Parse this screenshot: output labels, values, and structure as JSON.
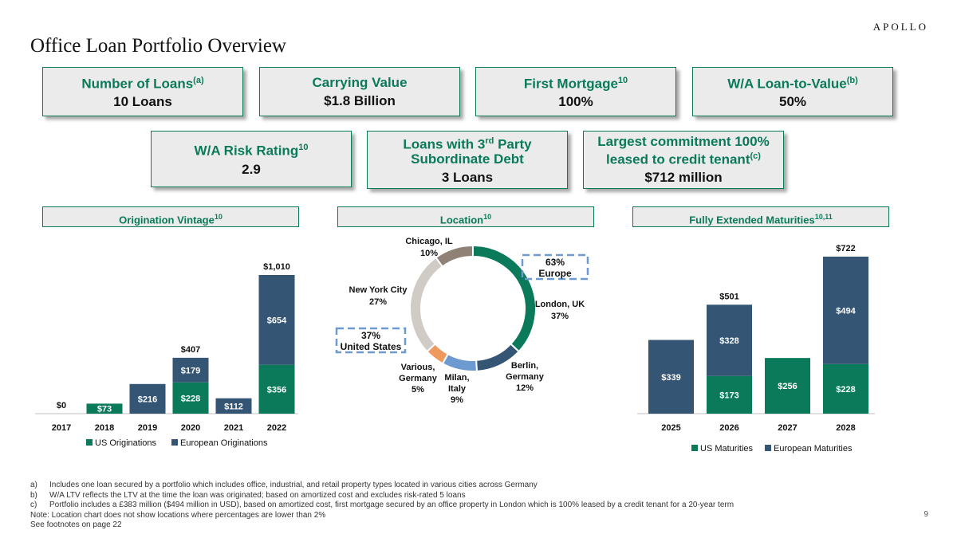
{
  "brand": "APOLLO",
  "title": "Office Loan Portfolio Overview",
  "page_number": "9",
  "colors": {
    "green": "#0a7a5a",
    "navy": "#345574",
    "panel": "#ebebeb"
  },
  "kpis": {
    "num_loans": {
      "label": "Number of Loans",
      "sup": "(a)",
      "value": "10 Loans"
    },
    "carrying_value": {
      "label": "Carrying Value",
      "value": "$1.8 Billion"
    },
    "first_mortgage": {
      "label": "First Mortgage",
      "sup": "10",
      "value": "100%"
    },
    "ltv": {
      "label": "W/A Loan-to-Value",
      "sup": "(b)",
      "value": "50%"
    },
    "risk_rating": {
      "label": "W/A Risk Rating",
      "sup": "10",
      "value": "2.9"
    },
    "sub_debt": {
      "label_a": "Loans with 3",
      "label_sup": "rd",
      "label_b": " Party",
      "label_c": "Subordinate Debt",
      "value": "3 Loans"
    },
    "largest": {
      "label_a": "Largest commitment 100%",
      "label_b": "leased to credit tenant",
      "sup": "(c)",
      "value": "$712 million"
    }
  },
  "sections": {
    "vintage": {
      "label": "Origination Vintage",
      "sup": "10"
    },
    "location": {
      "label": "Location",
      "sup": "10"
    },
    "maturities": {
      "label": "Fully Extended Maturities",
      "sup": "10,11"
    }
  },
  "chart_data": [
    {
      "type": "bar",
      "stacked": true,
      "title": "Origination Vintage",
      "categories": [
        "2017",
        "2018",
        "2019",
        "2020",
        "2021",
        "2022"
      ],
      "series": [
        {
          "name": "US Originations",
          "color": "#0a7a5a",
          "values": [
            0,
            73,
            0,
            228,
            0,
            356
          ],
          "labels": [
            "",
            "$73",
            "",
            "$228",
            "",
            "$356"
          ]
        },
        {
          "name": "European Originations",
          "color": "#345574",
          "values": [
            0,
            0,
            216,
            179,
            112,
            654
          ],
          "labels": [
            "",
            "",
            "$216",
            "$179",
            "$112",
            "$654"
          ]
        }
      ],
      "totals": [
        "$0",
        "",
        "",
        "$407",
        "",
        "$1,010"
      ],
      "ylim": [
        0,
        1010
      ]
    },
    {
      "type": "pie",
      "donut": true,
      "title": "Location",
      "slices": [
        {
          "name": "London, UK",
          "value": 37,
          "pct": "37%",
          "color": "#0a7a5a"
        },
        {
          "name": "Berlin, Germany",
          "line1": "Berlin,",
          "line2": "Germany",
          "value": 12,
          "pct": "12%",
          "color": "#345574"
        },
        {
          "name": "Milan, Italy",
          "line1": "Milan,",
          "line2": "Italy",
          "value": 9,
          "pct": "9%",
          "color": "#6d9bd1"
        },
        {
          "name": "Various, Germany",
          "line1": "Various,",
          "line2": "Germany",
          "value": 5,
          "pct": "5%",
          "color": "#ee9a5f"
        },
        {
          "name": "New York City",
          "value": 27,
          "pct": "27%",
          "color": "#d1cbc6"
        },
        {
          "name": "Chicago, IL",
          "value": 10,
          "pct": "10%",
          "color": "#8f8175"
        }
      ],
      "callouts": [
        {
          "pct": "63%",
          "label": "Europe"
        },
        {
          "pct": "37%",
          "label": "United States"
        }
      ]
    },
    {
      "type": "bar",
      "stacked": true,
      "title": "Fully Extended Maturities",
      "categories": [
        "2025",
        "2026",
        "2027",
        "2028"
      ],
      "series": [
        {
          "name": "US Maturities",
          "color": "#0a7a5a",
          "values": [
            0,
            173,
            256,
            228
          ],
          "labels": [
            "",
            "$173",
            "$256",
            "$228"
          ]
        },
        {
          "name": "European Maturities",
          "color": "#345574",
          "values": [
            339,
            328,
            0,
            494
          ],
          "labels": [
            "$339",
            "$328",
            "",
            "$494"
          ]
        }
      ],
      "totals": [
        "",
        "$501",
        "",
        "$722"
      ],
      "ylim": [
        0,
        722
      ]
    }
  ],
  "footnotes": [
    {
      "mark": "a)",
      "text": "Includes one loan secured by a portfolio which includes office, industrial, and retail property types located in various cities across Germany"
    },
    {
      "mark": "b)",
      "text": "W/A LTV reflects the LTV at the time the loan was originated; based on amortized cost and excludes risk-rated 5 loans"
    },
    {
      "mark": "c)",
      "text": "Portfolio includes a £383 million ($494 million in USD), based on amortized cost, first mortgage secured by an office property in London which is 100% leased by a credit tenant for a 20-year term"
    }
  ],
  "note": "Note: Location chart does not show locations where percentages are lower than 2%",
  "see_footnotes": "See footnotes on page 22"
}
